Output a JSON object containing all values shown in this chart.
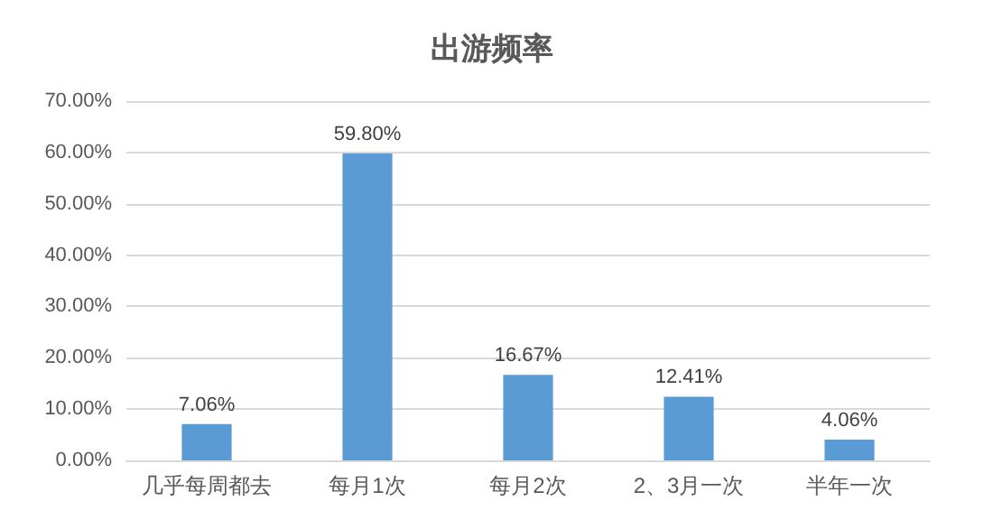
{
  "chart_data": {
    "type": "bar",
    "title": "出游频率",
    "categories": [
      "几乎每周都去",
      "每月1次",
      "每月2次",
      "2、3月一次",
      "半年一次"
    ],
    "values": [
      7.06,
      59.8,
      16.67,
      12.41,
      4.06
    ],
    "value_labels": [
      "7.06%",
      "59.80%",
      "16.67%",
      "12.41%",
      "4.06%"
    ],
    "color": "#5b9bd5",
    "ylim": [
      0,
      70
    ],
    "yticks": [
      {
        "value": 0,
        "label": "0.00%"
      },
      {
        "value": 10,
        "label": "10.00%"
      },
      {
        "value": 20,
        "label": "20.00%"
      },
      {
        "value": 30,
        "label": "30.00%"
      },
      {
        "value": 40,
        "label": "40.00%"
      },
      {
        "value": 50,
        "label": "50.00%"
      },
      {
        "value": 60,
        "label": "60.00%"
      },
      {
        "value": 70,
        "label": "70.00%"
      }
    ],
    "grid": "y"
  }
}
